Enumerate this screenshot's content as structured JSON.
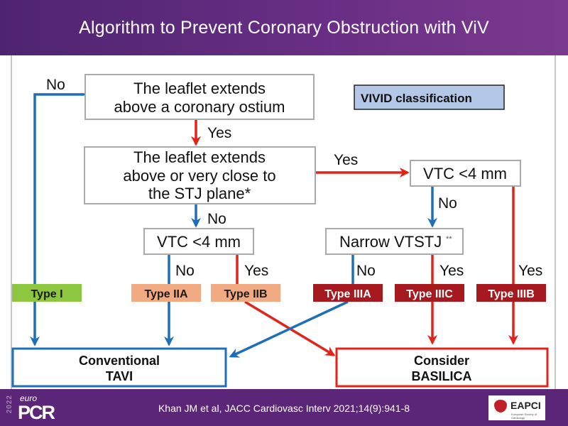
{
  "slide": {
    "title": "Algorithm to Prevent Coronary Obstruction with ViV"
  },
  "diagram": {
    "legend_box": "VIVID classification",
    "q1": [
      "The leaflet extends",
      "above a coronary ostium"
    ],
    "q2": [
      "The leaflet extends",
      "above or very close to",
      "the STJ plane*"
    ],
    "q3_left": "VTC <4 mm",
    "q3_right": "VTC <4 mm",
    "q4": "Narrow VTSTJ",
    "q4_mark": "**",
    "labels": {
      "no": "No",
      "yes": "Yes"
    },
    "types": [
      {
        "label": "Type I",
        "color": "#8dc63f",
        "text_color": "#1a1a1a"
      },
      {
        "label": "Type IIA",
        "color": "#f2aa82",
        "text_color": "#1a1a1a"
      },
      {
        "label": "Type IIB",
        "color": "#f2aa82",
        "text_color": "#1a1a1a"
      },
      {
        "label": "Type IIIA",
        "color": "#a5191f",
        "text_color": "#ffffff"
      },
      {
        "label": "Type IIIC",
        "color": "#a5191f",
        "text_color": "#ffffff"
      },
      {
        "label": "Type IIIB",
        "color": "#a5191f",
        "text_color": "#ffffff"
      }
    ],
    "outcome_left": [
      "Conventional",
      "TAVI"
    ],
    "outcome_right": [
      "Consider",
      "BASILICA"
    ],
    "colors": {
      "no_path": "#1f6fb8",
      "yes_path": "#e2231a",
      "legend_fill": "#b4c7e7"
    }
  },
  "footer": {
    "citation": "Khan JM et al, JACC Cardiovasc Interv 2021;14(9):941-8",
    "logo_left": {
      "year": "2022",
      "euro": "euro",
      "pcr": "PCR"
    },
    "logo_right": {
      "name": "EAPCI",
      "sub": "European Society of Cardiology"
    }
  }
}
